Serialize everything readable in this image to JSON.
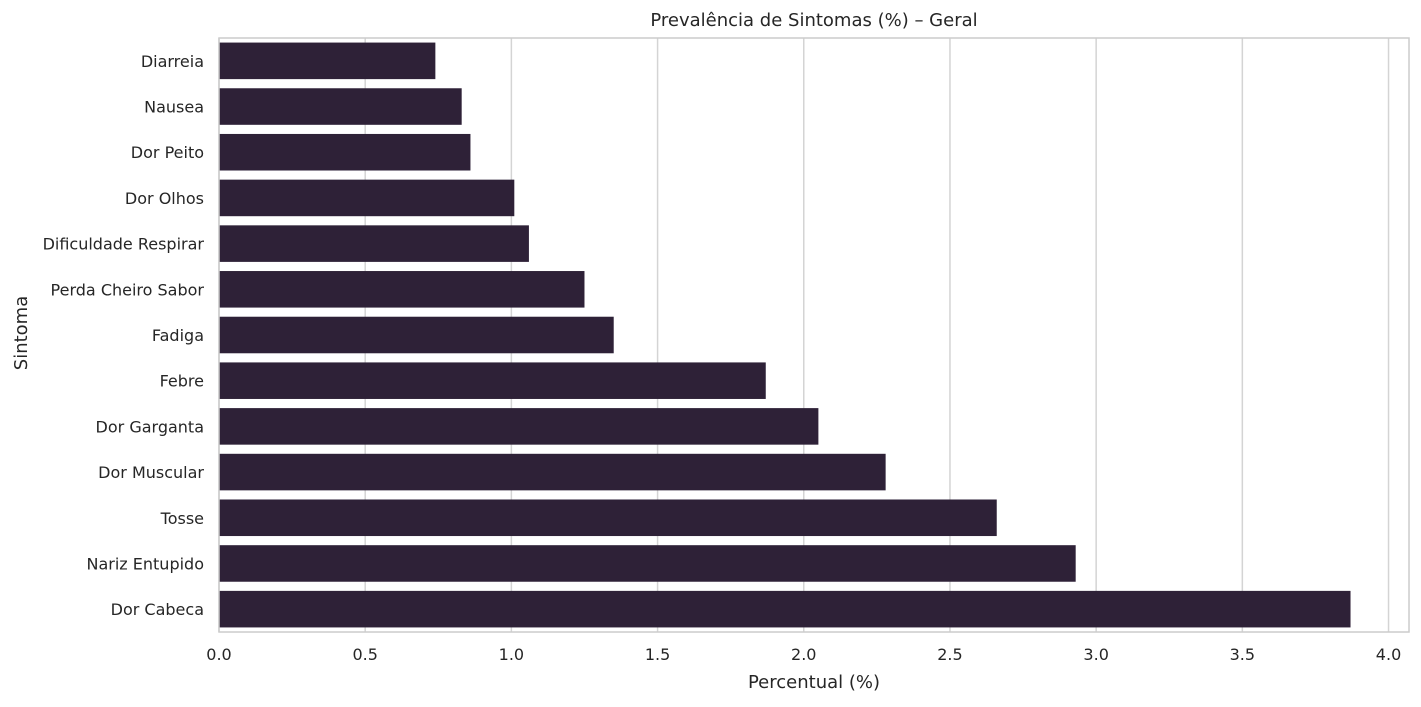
{
  "chart_data": {
    "type": "bar",
    "orientation": "horizontal",
    "title": "Prevalência de Sintomas (%) – Geral",
    "xlabel": "Percentual (%)",
    "ylabel": "Sintoma",
    "categories": [
      "Diarreia",
      "Nausea",
      "Dor Peito",
      "Dor Olhos",
      "Dificuldade Respirar",
      "Perda Cheiro Sabor",
      "Fadiga",
      "Febre",
      "Dor Garganta",
      "Dor Muscular",
      "Tosse",
      "Nariz Entupido",
      "Dor Cabeca"
    ],
    "values": [
      0.74,
      0.83,
      0.86,
      1.01,
      1.06,
      1.25,
      1.35,
      1.87,
      2.05,
      2.28,
      2.66,
      2.93,
      3.87
    ],
    "xlim": [
      0,
      4.07
    ],
    "xticks": [
      "0.0",
      "0.5",
      "1.0",
      "1.5",
      "2.0",
      "2.5",
      "3.0",
      "3.5",
      "4.0"
    ],
    "grid": true,
    "colors": {
      "bar": "#2e2137",
      "grid": "#d4d4d4",
      "frame": "#cccccc",
      "text": "#262626"
    }
  }
}
